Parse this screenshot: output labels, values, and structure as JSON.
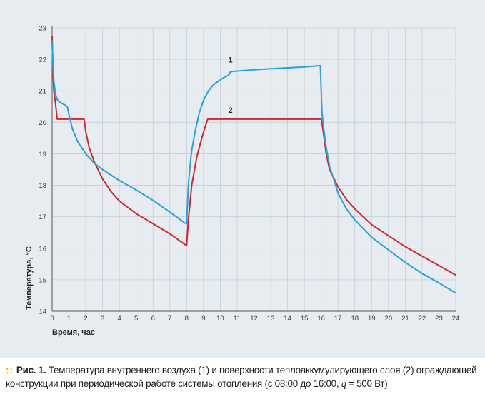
{
  "chart_data": {
    "type": "line",
    "title": "",
    "xlabel": "Время, час",
    "ylabel": "Температура, °С",
    "xlim": [
      0,
      24
    ],
    "ylim": [
      14,
      23
    ],
    "x_ticks": [
      0,
      1,
      2,
      3,
      4,
      5,
      6,
      7,
      8,
      9,
      10,
      11,
      12,
      13,
      14,
      15,
      16,
      17,
      18,
      19,
      20,
      21,
      22,
      23,
      24
    ],
    "y_ticks": [
      14,
      15,
      16,
      17,
      18,
      19,
      20,
      21,
      22,
      23
    ],
    "grid": true,
    "colors": {
      "series1": "#2a9fd8",
      "series2": "#d0262d",
      "grid": "#c6ced6",
      "panel": "#e7ecf0"
    },
    "series": [
      {
        "name": "1",
        "label_at": [
          10.6,
          21.9
        ],
        "points": [
          [
            0.0,
            22.6
          ],
          [
            0.05,
            21.8
          ],
          [
            0.1,
            21.3
          ],
          [
            0.2,
            20.9
          ],
          [
            0.3,
            20.72
          ],
          [
            0.5,
            20.62
          ],
          [
            0.7,
            20.57
          ],
          [
            0.9,
            20.5
          ],
          [
            1.0,
            20.25
          ],
          [
            1.2,
            19.8
          ],
          [
            1.5,
            19.4
          ],
          [
            2.0,
            19.0
          ],
          [
            2.5,
            18.7
          ],
          [
            3.0,
            18.5
          ],
          [
            4.0,
            18.15
          ],
          [
            5.0,
            17.85
          ],
          [
            6.0,
            17.52
          ],
          [
            7.0,
            17.15
          ],
          [
            7.9,
            16.8
          ],
          [
            8.0,
            16.78
          ],
          [
            8.05,
            17.4
          ],
          [
            8.1,
            18.0
          ],
          [
            8.2,
            18.6
          ],
          [
            8.3,
            19.1
          ],
          [
            8.5,
            19.7
          ],
          [
            8.75,
            20.3
          ],
          [
            9.0,
            20.7
          ],
          [
            9.3,
            21.0
          ],
          [
            9.6,
            21.2
          ],
          [
            10.0,
            21.35
          ],
          [
            10.3,
            21.45
          ],
          [
            10.5,
            21.5
          ],
          [
            10.6,
            21.6
          ],
          [
            10.8,
            21.62
          ],
          [
            11.5,
            21.65
          ],
          [
            12.0,
            21.67
          ],
          [
            13.0,
            21.7
          ],
          [
            14.0,
            21.73
          ],
          [
            15.0,
            21.76
          ],
          [
            15.95,
            21.8
          ],
          [
            16.05,
            20.3
          ],
          [
            16.15,
            19.8
          ],
          [
            16.3,
            19.2
          ],
          [
            16.5,
            18.6
          ],
          [
            16.8,
            18.1
          ],
          [
            17.0,
            17.75
          ],
          [
            17.5,
            17.25
          ],
          [
            18.0,
            16.9
          ],
          [
            19.0,
            16.35
          ],
          [
            20.0,
            15.95
          ],
          [
            21.0,
            15.55
          ],
          [
            22.0,
            15.2
          ],
          [
            23.0,
            14.9
          ],
          [
            24.0,
            14.58
          ]
        ]
      },
      {
        "name": "2",
        "label_at": [
          10.6,
          20.3
        ],
        "points": [
          [
            0.0,
            22.75
          ],
          [
            0.05,
            21.6
          ],
          [
            0.1,
            21.0
          ],
          [
            0.2,
            20.6
          ],
          [
            0.3,
            20.1
          ],
          [
            1.9,
            20.1
          ],
          [
            2.0,
            19.7
          ],
          [
            2.2,
            19.2
          ],
          [
            2.5,
            18.75
          ],
          [
            3.0,
            18.2
          ],
          [
            3.5,
            17.8
          ],
          [
            4.0,
            17.5
          ],
          [
            5.0,
            17.1
          ],
          [
            6.0,
            16.78
          ],
          [
            7.0,
            16.46
          ],
          [
            7.95,
            16.1
          ],
          [
            8.0,
            16.1
          ],
          [
            8.1,
            16.9
          ],
          [
            8.3,
            18.0
          ],
          [
            8.6,
            18.9
          ],
          [
            8.9,
            19.5
          ],
          [
            9.1,
            19.85
          ],
          [
            9.25,
            20.1
          ],
          [
            16.0,
            20.1
          ],
          [
            16.1,
            19.8
          ],
          [
            16.3,
            19.0
          ],
          [
            16.5,
            18.5
          ],
          [
            17.0,
            17.95
          ],
          [
            17.5,
            17.55
          ],
          [
            18.0,
            17.25
          ],
          [
            19.0,
            16.75
          ],
          [
            20.0,
            16.4
          ],
          [
            21.0,
            16.05
          ],
          [
            22.0,
            15.75
          ],
          [
            23.0,
            15.45
          ],
          [
            24.0,
            15.15
          ]
        ]
      }
    ]
  },
  "caption": {
    "dots": "::",
    "fig_label": "Рис. 1.",
    "text_before_q": " Температура внутреннего воздуха (1) и поверхности теплоаккумулирующего слоя (2) ограждающей конструкции при периодической работе системы отопления (с 08:00 до 16:00, ",
    "q_symbol": "q",
    "text_after_q": " = 500 Вт)"
  }
}
